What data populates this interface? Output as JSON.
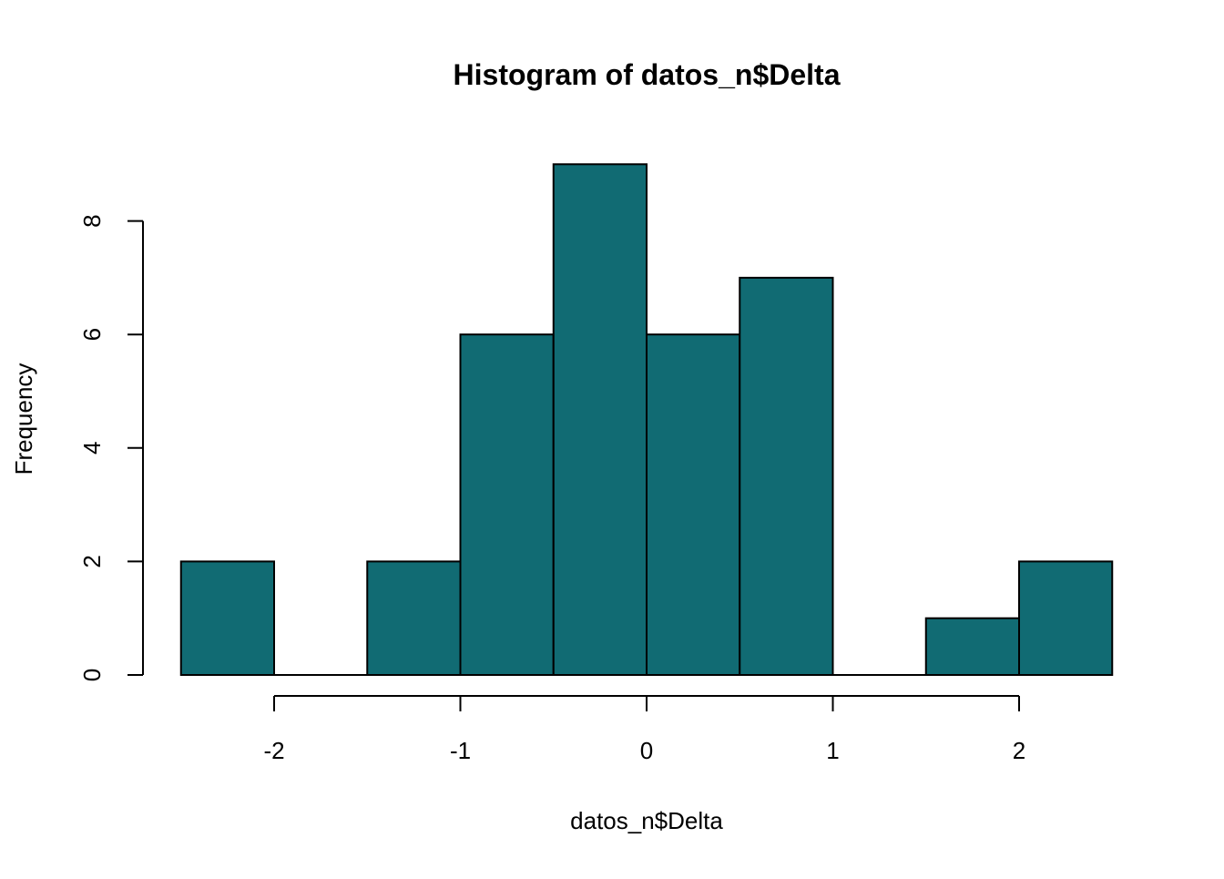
{
  "chart_data": {
    "type": "bar",
    "subtype": "histogram",
    "title": "Histogram of datos_n$Delta",
    "xlabel": "datos_n$Delta",
    "ylabel": "Frequency",
    "bin_edges": [
      -2.5,
      -2,
      -1.5,
      -1,
      -0.5,
      0,
      0.5,
      1,
      1.5,
      2,
      2.5
    ],
    "values": [
      2,
      0,
      2,
      6,
      9,
      6,
      7,
      0,
      1,
      2
    ],
    "xlim": [
      -2.5,
      2.5
    ],
    "ylim": [
      0,
      9
    ],
    "x_ticks": [
      -2,
      -1,
      0,
      1,
      2
    ],
    "y_ticks": [
      0,
      2,
      4,
      6,
      8
    ],
    "x_tick_labels": [
      "-2",
      "-1",
      "0",
      "1",
      "2"
    ],
    "y_tick_labels": [
      "0",
      "2",
      "4",
      "6",
      "8"
    ],
    "bar_color": "#116B73",
    "grid": false,
    "legend": "none"
  }
}
